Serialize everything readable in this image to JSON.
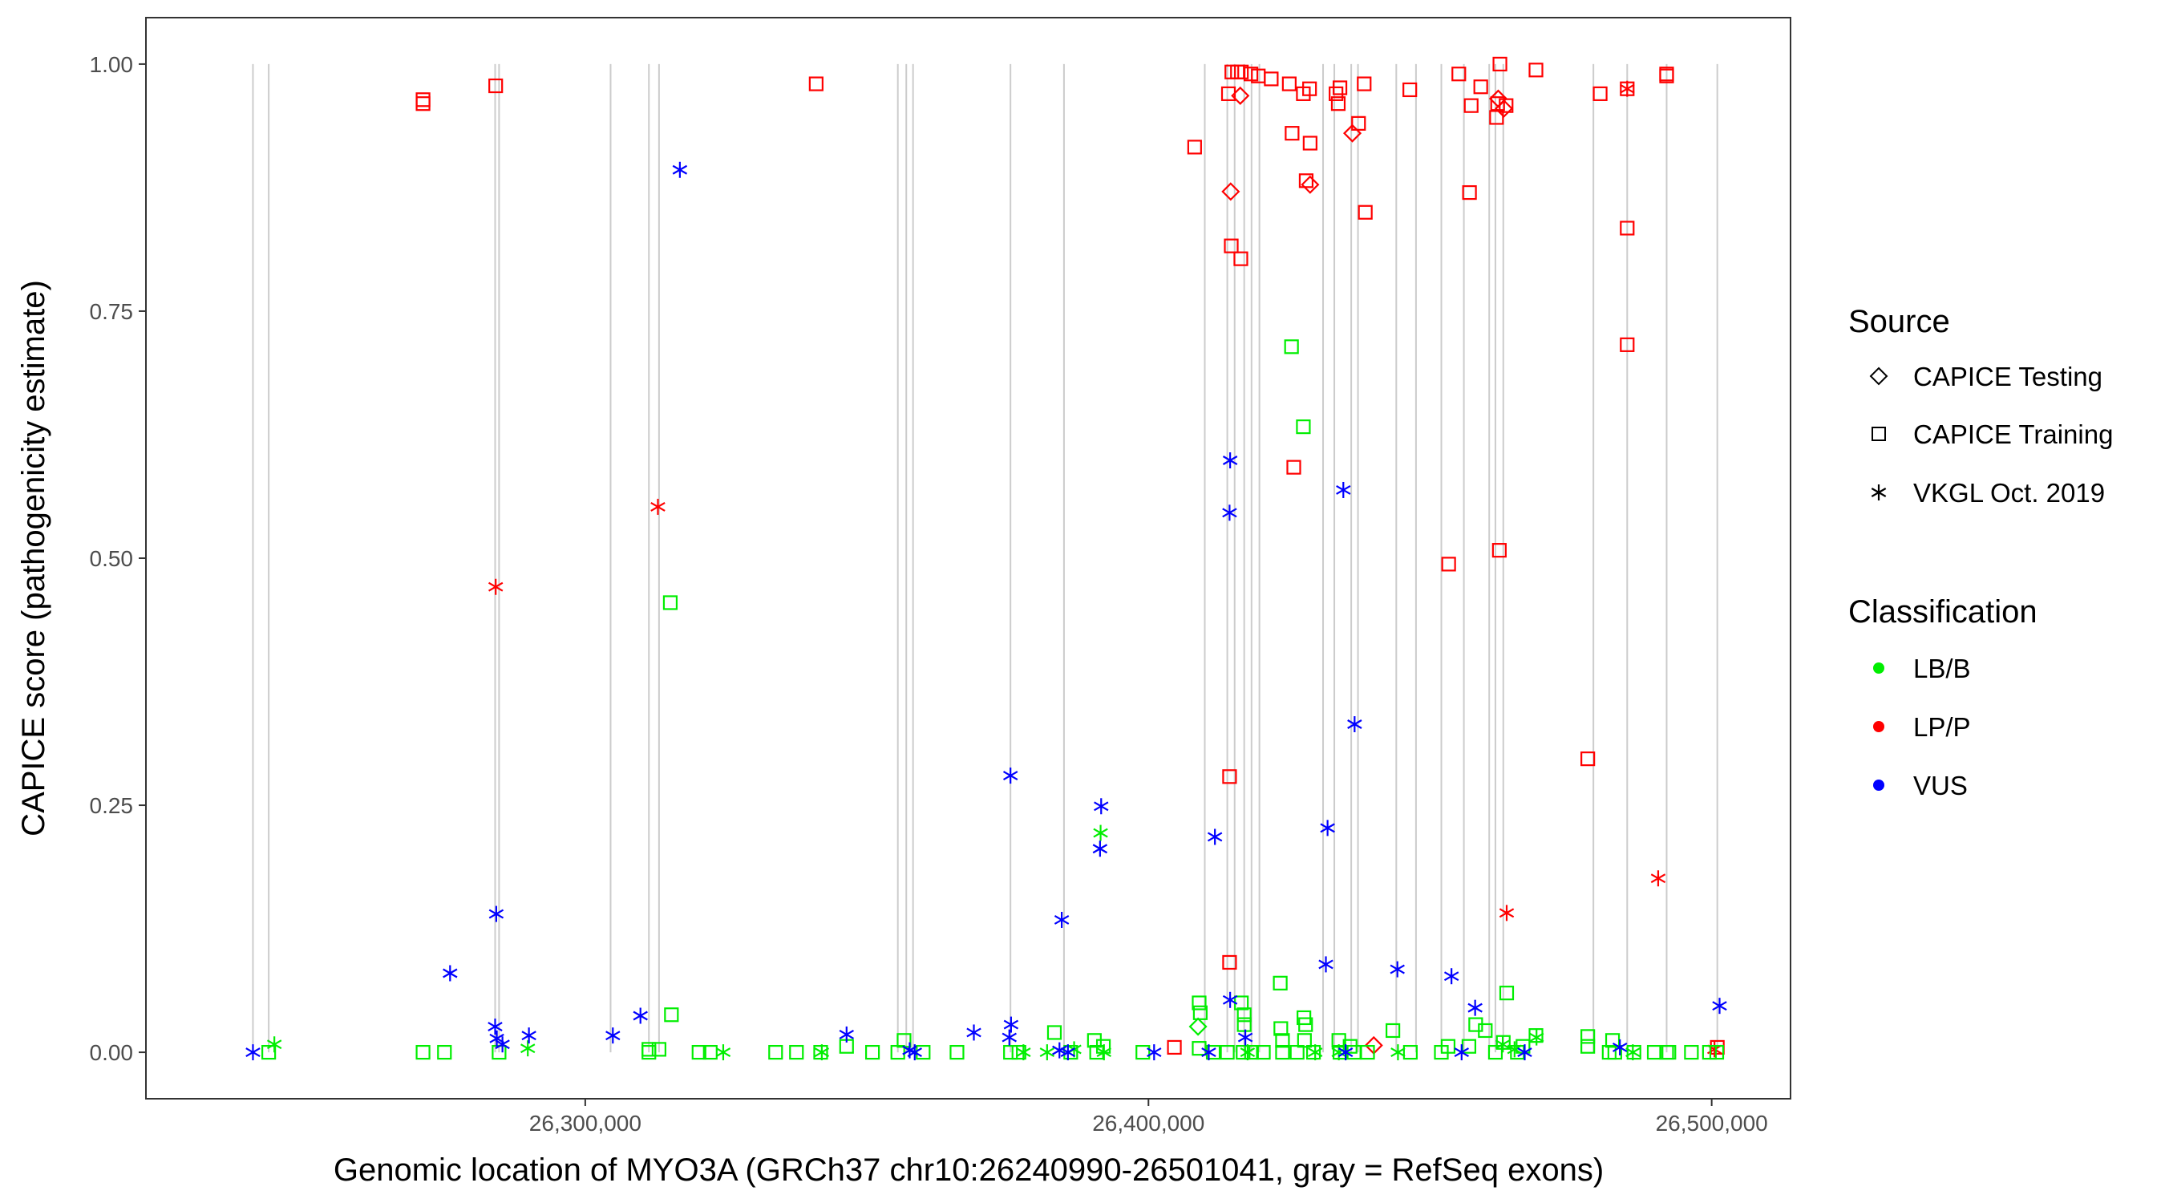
{
  "chart_data": {
    "type": "scatter",
    "xlabel": "Genomic location of MYO3A (GRCh37 chr10:26240990-26501041, gray = RefSeq exons)",
    "ylabel": "CAPICE score (pathogenicity estimate)",
    "xlim": [
      26222000,
      26514000
    ],
    "ylim": [
      -0.047,
      1.047
    ],
    "x_ticks": [
      26300000,
      26400000,
      26500000
    ],
    "x_tick_labels": [
      "26,300,000",
      "26,400,000",
      "26,500,000"
    ],
    "y_ticks": [
      0,
      0.25,
      0.5,
      0.75,
      1
    ],
    "y_tick_labels": [
      "0.00",
      "0.25",
      "0.50",
      "0.75",
      "1.00"
    ],
    "exons": [
      26241000,
      26243800,
      26284000,
      26284700,
      26304500,
      26311300,
      26313100,
      26355500,
      26357000,
      26358200,
      26375500,
      26385000,
      26410000,
      26414000,
      26415300,
      26417000,
      26418300,
      26419700,
      26431000,
      26433000,
      26436000,
      26437200,
      26444000,
      26447500,
      26452000,
      26456000,
      26460500,
      26461600,
      26463000,
      26479000,
      26485000,
      26492000,
      26501000
    ],
    "legend": {
      "source_title": "Source",
      "source": [
        {
          "name": "CAPICE Testing",
          "shape": "diamond"
        },
        {
          "name": "CAPICE Training",
          "shape": "square"
        },
        {
          "name": "VKGL Oct. 2019",
          "shape": "asterisk"
        }
      ],
      "class_title": "Classification",
      "classification": [
        {
          "name": "LB/B",
          "color": "#00ee00"
        },
        {
          "name": "LP/P",
          "color": "#ff0000"
        },
        {
          "name": "VUS",
          "color": "#0000ff"
        }
      ]
    },
    "series": [
      {
        "name": "LP/P | CAPICE Training",
        "class": "LP/P",
        "source": "CAPICE Training",
        "points": [
          [
            26271200,
            0.964
          ],
          [
            26271200,
            0.96
          ],
          [
            26284100,
            0.978
          ],
          [
            26341000,
            0.98
          ],
          [
            26408200,
            0.916
          ],
          [
            26414200,
            0.97
          ],
          [
            26414800,
            0.992
          ],
          [
            26415800,
            0.992
          ],
          [
            26416500,
            0.992
          ],
          [
            26418200,
            0.99
          ],
          [
            26419500,
            0.988
          ],
          [
            26421800,
            0.985
          ],
          [
            26425000,
            0.98
          ],
          [
            26427500,
            0.97
          ],
          [
            26428600,
            0.975
          ],
          [
            26425500,
            0.93
          ],
          [
            26428700,
            0.92
          ],
          [
            26434000,
            0.976
          ],
          [
            26433700,
            0.96
          ],
          [
            26437300,
            0.94
          ],
          [
            26438300,
            0.98
          ],
          [
            26438500,
            0.85
          ],
          [
            26446400,
            0.974
          ],
          [
            26433300,
            0.97
          ],
          [
            26455100,
            0.99
          ],
          [
            26457300,
            0.958
          ],
          [
            26459000,
            0.977
          ],
          [
            26462000,
            0.96
          ],
          [
            26463500,
            0.958
          ],
          [
            26461800,
            0.946
          ],
          [
            26462400,
            1.0
          ],
          [
            26468800,
            0.994
          ],
          [
            26457000,
            0.87
          ],
          [
            26414700,
            0.816
          ],
          [
            26416400,
            0.803
          ],
          [
            26425800,
            0.592
          ],
          [
            26428000,
            0.882
          ],
          [
            26480200,
            0.97
          ],
          [
            26485000,
            0.975
          ],
          [
            26492000,
            0.988
          ],
          [
            26492000,
            0.99
          ],
          [
            26485000,
            0.834
          ],
          [
            26485000,
            0.716
          ],
          [
            26453300,
            0.494
          ],
          [
            26462300,
            0.508
          ],
          [
            26478000,
            0.297
          ],
          [
            26414400,
            0.279
          ],
          [
            26414400,
            0.091
          ],
          [
            26404600,
            0.005
          ],
          [
            26501000,
            0.005
          ]
        ]
      },
      {
        "name": "LP/P | CAPICE Testing",
        "class": "LP/P",
        "source": "CAPICE Testing",
        "points": [
          [
            26416300,
            0.968
          ],
          [
            26414600,
            0.871
          ],
          [
            26428700,
            0.878
          ],
          [
            26436200,
            0.93
          ],
          [
            26462100,
            0.965
          ],
          [
            26463100,
            0.955
          ],
          [
            26440000,
            0.007
          ]
        ]
      },
      {
        "name": "LP/P | VKGL Oct. 2019",
        "class": "LP/P",
        "source": "VKGL Oct. 2019",
        "points": [
          [
            26284100,
            0.471
          ],
          [
            26312900,
            0.552
          ],
          [
            26485000,
            0.975
          ],
          [
            26463600,
            0.141
          ],
          [
            26490500,
            0.176
          ],
          [
            26500500,
            0.003
          ]
        ]
      },
      {
        "name": "LB/B | CAPICE Training",
        "class": "LB/B",
        "source": "CAPICE Training",
        "points": [
          [
            26243800,
            0.0
          ],
          [
            26271200,
            0.0
          ],
          [
            26275000,
            0.0
          ],
          [
            26284700,
            0.0
          ],
          [
            26311300,
            0.0
          ],
          [
            26311300,
            0.003
          ],
          [
            26313100,
            0.003
          ],
          [
            26315300,
            0.038
          ],
          [
            26315100,
            0.455
          ],
          [
            26320200,
            0.0
          ],
          [
            26322200,
            0.0
          ],
          [
            26333800,
            0.0
          ],
          [
            26337500,
            0.0
          ],
          [
            26341800,
            0.0
          ],
          [
            26346400,
            0.006
          ],
          [
            26351000,
            0.0
          ],
          [
            26355500,
            0.0
          ],
          [
            26356600,
            0.012
          ],
          [
            26360000,
            0.0
          ],
          [
            26366000,
            0.0
          ],
          [
            26375500,
            0.0
          ],
          [
            26377000,
            0.0
          ],
          [
            26383300,
            0.02
          ],
          [
            26386200,
            0.0
          ],
          [
            26390400,
            0.012
          ],
          [
            26390800,
            0.0
          ],
          [
            26392000,
            0.006
          ],
          [
            26399000,
            0.0
          ],
          [
            26409000,
            0.05
          ],
          [
            26409200,
            0.04
          ],
          [
            26409000,
            0.004
          ],
          [
            26411500,
            0.0
          ],
          [
            26414000,
            0.0
          ],
          [
            26416500,
            0.05
          ],
          [
            26417000,
            0.038
          ],
          [
            26417000,
            0.028
          ],
          [
            26416800,
            0.0
          ],
          [
            26418300,
            0.0
          ],
          [
            26420400,
            0.0
          ],
          [
            26423400,
            0.07
          ],
          [
            26423500,
            0.024
          ],
          [
            26423800,
            0.012
          ],
          [
            26423800,
            0.0
          ],
          [
            26425400,
            0.714
          ],
          [
            26427500,
            0.633
          ],
          [
            26426400,
            0.0
          ],
          [
            26427600,
            0.035
          ],
          [
            26427900,
            0.028
          ],
          [
            26427700,
            0.012
          ],
          [
            26429300,
            0.0
          ],
          [
            26433800,
            0.012
          ],
          [
            26434000,
            0.0
          ],
          [
            26435800,
            0.006
          ],
          [
            26436500,
            0.0
          ],
          [
            26438900,
            0.0
          ],
          [
            26443400,
            0.022
          ],
          [
            26446500,
            0.0
          ],
          [
            26452000,
            0.0
          ],
          [
            26453200,
            0.006
          ],
          [
            26456900,
            0.006
          ],
          [
            26458100,
            0.028
          ],
          [
            26459800,
            0.022
          ],
          [
            26461600,
            0.0
          ],
          [
            26463600,
            0.06
          ],
          [
            26463000,
            0.01
          ],
          [
            26465500,
            0.0
          ],
          [
            26466500,
            0.006
          ],
          [
            26468800,
            0.017
          ],
          [
            26478000,
            0.016
          ],
          [
            26478000,
            0.006
          ],
          [
            26481800,
            0.0
          ],
          [
            26482400,
            0.012
          ],
          [
            26482800,
            0.0
          ],
          [
            26486200,
            0.0
          ],
          [
            26489800,
            0.0
          ],
          [
            26492000,
            0.0
          ],
          [
            26492400,
            0.0
          ],
          [
            26496400,
            0.0
          ],
          [
            26499600,
            0.0
          ],
          [
            26500900,
            0.0
          ]
        ]
      },
      {
        "name": "LB/B | CAPICE Testing",
        "class": "LB/B",
        "source": "CAPICE Testing",
        "points": [
          [
            26408800,
            0.026
          ]
        ]
      },
      {
        "name": "LB/B | VKGL Oct. 2019",
        "class": "LB/B",
        "source": "VKGL Oct. 2019",
        "points": [
          [
            26244800,
            0.008
          ],
          [
            26289800,
            0.004
          ],
          [
            26324500,
            0.0
          ],
          [
            26342000,
            0.0
          ],
          [
            26377800,
            0.0
          ],
          [
            26382000,
            0.0
          ],
          [
            26386800,
            0.003
          ],
          [
            26391500,
            0.222
          ],
          [
            26392100,
            0.0
          ],
          [
            26417600,
            0.0
          ],
          [
            26429600,
            0.0
          ],
          [
            26433800,
            0.0
          ],
          [
            26444300,
            0.0
          ],
          [
            26462900,
            0.008
          ],
          [
            26465000,
            0.003
          ],
          [
            26468900,
            0.015
          ],
          [
            26486000,
            0.0
          ]
        ]
      },
      {
        "name": "VUS | VKGL Oct. 2019",
        "class": "VUS",
        "source": "VKGL Oct. 2019",
        "points": [
          [
            26241000,
            0.0
          ],
          [
            26276000,
            0.08
          ],
          [
            26284200,
            0.14
          ],
          [
            26284000,
            0.026
          ],
          [
            26284300,
            0.014
          ],
          [
            26285300,
            0.008
          ],
          [
            26290000,
            0.017
          ],
          [
            26304900,
            0.017
          ],
          [
            26309800,
            0.037
          ],
          [
            26316800,
            0.893
          ],
          [
            26346400,
            0.018
          ],
          [
            26357600,
            0.002
          ],
          [
            26358500,
            0.0
          ],
          [
            26369000,
            0.02
          ],
          [
            26375500,
            0.28
          ],
          [
            26375600,
            0.028
          ],
          [
            26375300,
            0.015
          ],
          [
            26384200,
            0.002
          ],
          [
            26384600,
            0.134
          ],
          [
            26385700,
            0.0
          ],
          [
            26391600,
            0.249
          ],
          [
            26391400,
            0.206
          ],
          [
            26401000,
            0.0
          ],
          [
            26410700,
            0.0
          ],
          [
            26411800,
            0.218
          ],
          [
            26414500,
            0.599
          ],
          [
            26414400,
            0.546
          ],
          [
            26414500,
            0.053
          ],
          [
            26417200,
            0.015
          ],
          [
            26431500,
            0.089
          ],
          [
            26431800,
            0.227
          ],
          [
            26434600,
            0.569
          ],
          [
            26435000,
            0.0
          ],
          [
            26436600,
            0.332
          ],
          [
            26444200,
            0.084
          ],
          [
            26453800,
            0.077
          ],
          [
            26455600,
            0.0
          ],
          [
            26458000,
            0.045
          ],
          [
            26466800,
            0.0
          ],
          [
            26483700,
            0.005
          ],
          [
            26501400,
            0.047
          ]
        ]
      }
    ]
  }
}
